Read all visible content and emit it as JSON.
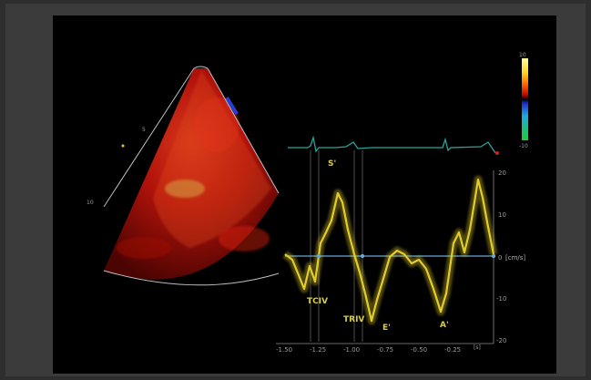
{
  "colorbar": {
    "top_label": "10",
    "bottom_label": "-10"
  },
  "sector_depth_labels": [
    "5",
    "10"
  ],
  "waveform_labels": {
    "s_wave": "S'",
    "e_wave": "E'",
    "a_wave": "A'",
    "tciv": "TCIV",
    "triv": "TRIV"
  },
  "y_axis": {
    "ticks": [
      "20",
      "10",
      "0",
      "-10",
      "-20"
    ],
    "unit": "[cm/s]"
  },
  "x_axis": {
    "ticks": [
      "-1.50",
      "-1.25",
      "-1.00",
      "-0.75",
      "-0.50",
      "-0.25"
    ],
    "unit": "[s]"
  },
  "colors": {
    "waveform": "#e2cd2c",
    "ecg": "#2aa39a",
    "doppler": "#c4160c",
    "axis_line": "#6aa7d6"
  }
}
